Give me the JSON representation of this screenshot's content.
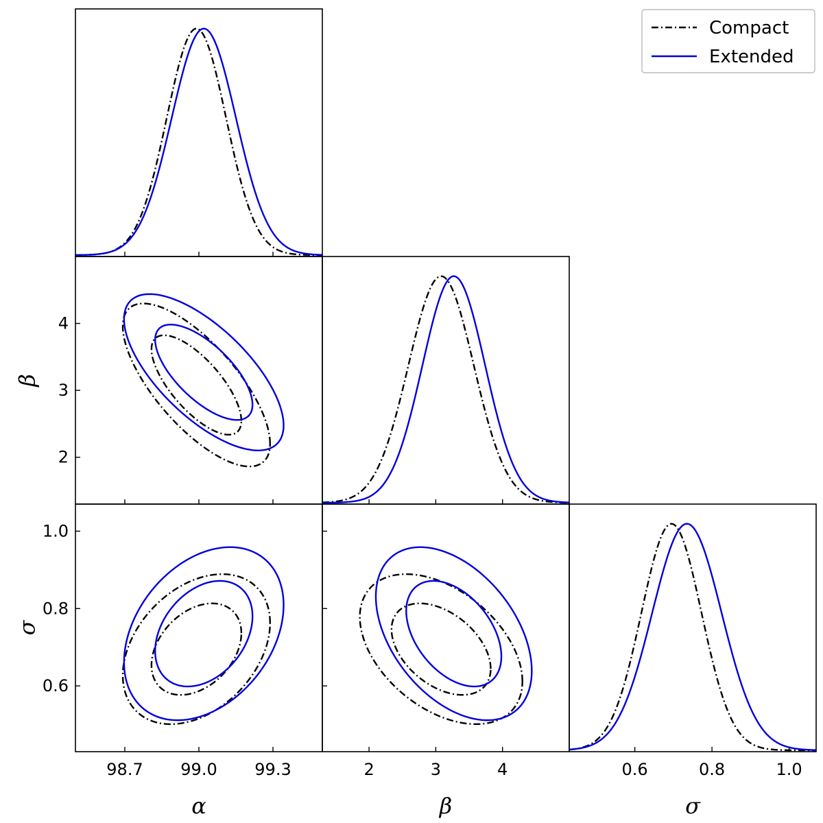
{
  "chart_data": {
    "type": "corner",
    "colors": {
      "compact": "#000000",
      "extended": "#0000dd"
    },
    "legend": {
      "placement": "top-right",
      "entries": [
        {
          "key": "compact",
          "label": "Compact",
          "style": "dashdot"
        },
        {
          "key": "extended",
          "label": "Extended",
          "style": "solid"
        }
      ]
    },
    "params": [
      {
        "key": "alpha",
        "label": "α",
        "range": [
          98.5,
          99.5
        ],
        "ticks": [
          98.7,
          99.0,
          99.3
        ],
        "tick_labels": [
          "98.7",
          "99.0",
          "99.3"
        ]
      },
      {
        "key": "beta",
        "label": "β",
        "range": [
          1.3,
          5.0
        ],
        "ticks": [
          2,
          3,
          4
        ],
        "tick_labels": [
          "2",
          "3",
          "4"
        ]
      },
      {
        "key": "sigma",
        "label": "σ",
        "range": [
          0.43,
          1.07
        ],
        "ticks": [
          0.6,
          0.8,
          1.0
        ],
        "tick_labels": [
          "0.6",
          "0.8",
          "1.0"
        ]
      }
    ],
    "series": [
      {
        "key": "compact",
        "name": "Compact",
        "mean": {
          "alpha": 98.99,
          "beta": 3.08,
          "sigma": 0.695
        },
        "sd": {
          "alpha": 0.12,
          "beta": 0.49,
          "sigma": 0.078
        },
        "corr": {
          "alpha-beta": -0.72,
          "alpha-sigma": 0.35,
          "beta-sigma": -0.43
        }
      },
      {
        "key": "extended",
        "name": "Extended",
        "mean": {
          "alpha": 99.02,
          "beta": 3.27,
          "sigma": 0.735
        },
        "sd": {
          "alpha": 0.13,
          "beta": 0.47,
          "sigma": 0.09
        },
        "corr": {
          "alpha-beta": -0.68,
          "alpha-sigma": 0.33,
          "beta-sigma": -0.43
        }
      }
    ],
    "contour_levels": [
      "68%",
      "95%"
    ]
  }
}
